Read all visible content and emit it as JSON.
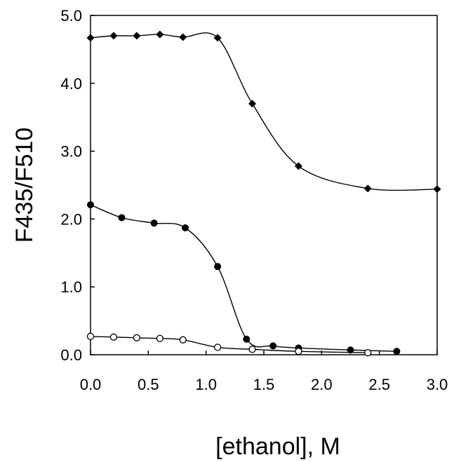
{
  "chart_data": {
    "type": "scatter",
    "xlabel": "[ethanol], M",
    "ylabel": "F435/F510",
    "xlim": [
      0,
      3.0
    ],
    "ylim": [
      0,
      5.0
    ],
    "x_ticks": [
      "0.0",
      "0.5",
      "1.0",
      "1.5",
      "2.0",
      "2.5",
      "3.0"
    ],
    "y_ticks": [
      "0.0",
      "1.0",
      "2.0",
      "3.0",
      "4.0",
      "5.0"
    ],
    "grid": false,
    "legend": "none",
    "series": [
      {
        "marker": "filled-diamond",
        "x": [
          0.0,
          0.2,
          0.4,
          0.6,
          0.8,
          1.1,
          1.4,
          1.8,
          2.4,
          3.0
        ],
        "y": [
          4.67,
          4.7,
          4.7,
          4.72,
          4.68,
          4.67,
          3.7,
          2.78,
          2.45,
          2.44
        ]
      },
      {
        "marker": "filled-circle",
        "x": [
          0.0,
          0.27,
          0.55,
          0.82,
          1.1,
          1.35,
          1.58,
          1.8,
          2.25,
          2.65
        ],
        "y": [
          2.21,
          2.02,
          1.94,
          1.87,
          1.3,
          0.23,
          0.13,
          0.1,
          0.07,
          0.05
        ]
      },
      {
        "marker": "open-circle",
        "x": [
          0.0,
          0.2,
          0.4,
          0.6,
          0.8,
          1.1,
          1.4,
          1.8,
          2.4
        ],
        "y": [
          0.27,
          0.26,
          0.25,
          0.24,
          0.22,
          0.11,
          0.08,
          0.05,
          0.03
        ]
      }
    ]
  }
}
